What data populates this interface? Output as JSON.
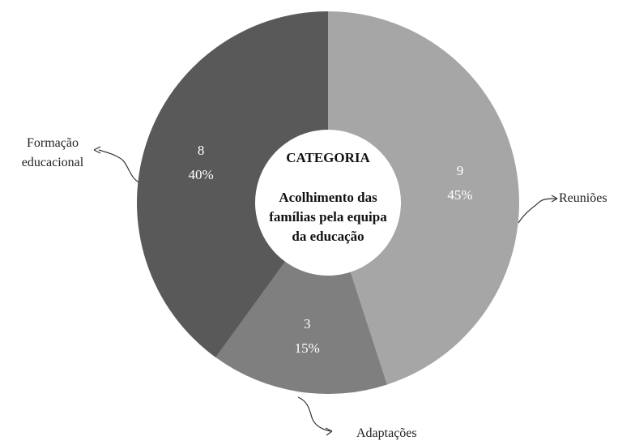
{
  "chart_data": {
    "type": "donut",
    "center_title": "CATEGORIA",
    "center_subtitle": "Acolhimento das famílias pela equipa da educação",
    "categories": [
      "Reuniões",
      "Adaptações",
      "Formação educacional"
    ],
    "values": [
      9,
      3,
      8
    ],
    "percentages": [
      45,
      15,
      40
    ],
    "percentage_labels": [
      "45%",
      "15%",
      "40%"
    ],
    "colors": [
      "#a6a6a6",
      "#7f7f7f",
      "#595959"
    ]
  }
}
